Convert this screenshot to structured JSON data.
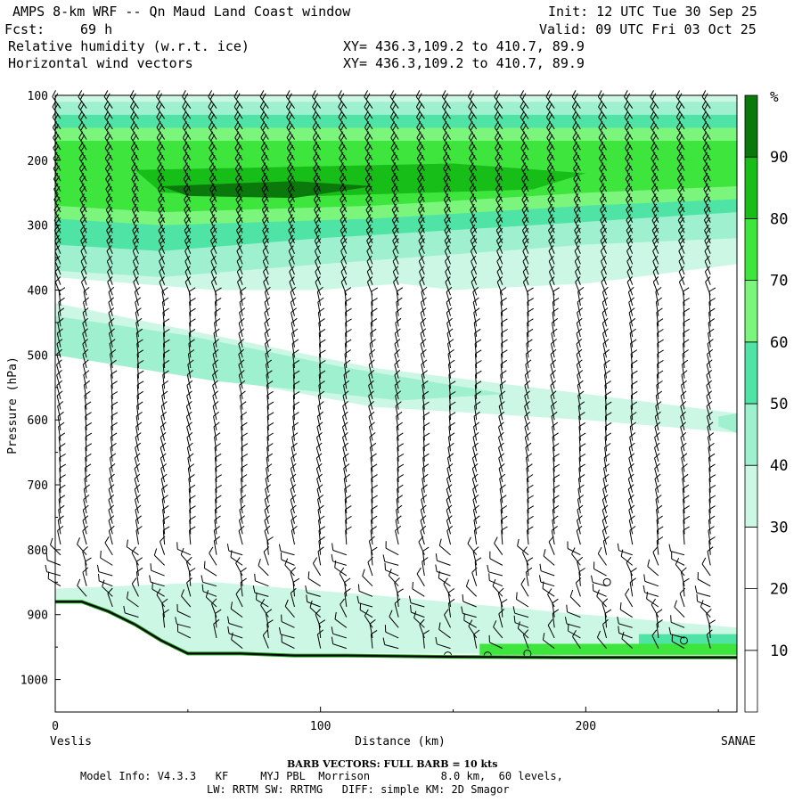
{
  "header": {
    "title": "AMPS 8-km WRF -- Qn Maud Land Coast window",
    "fcst_label": "Fcst:",
    "fcst_value": "69 h",
    "field1": "Relative humidity (w.r.t. ice)",
    "field2": "Horizontal wind vectors",
    "xy1": "XY= 436.3,109.2 to 410.7, 89.9",
    "xy2": "XY= 436.3,109.2 to 410.7, 89.9",
    "init": "Init: 12 UTC Tue 30 Sep 25",
    "valid": "Valid: 09 UTC Fri 03 Oct 25"
  },
  "footer": {
    "barb_note": "BARB VECTORS:  FULL BARB = 10 kts",
    "model_info_1": "Model Info: V4.3.3   KF     MYJ PBL  Morrison           8.0 km,  60 levels,",
    "model_info_2": "LW: RRTM SW: RRTMG   DIFF: simple KM: 2D Smagor"
  },
  "colors": {
    "c30": "#ccf7e5",
    "c40": "#9ef0cf",
    "c50": "#4fe3a6",
    "c60": "#7cf57c",
    "c70": "#3de53d",
    "c80": "#18be18",
    "c90": "#0b780b",
    "terrain": "#000000"
  },
  "chart_data": {
    "type": "cross-section contour with wind barbs",
    "title": "Relative humidity (w.r.t. ice) / Horizontal wind vectors",
    "xlabel": "Distance (km)",
    "ylabel": "Pressure (hPa)",
    "x_start_label": "Veslis",
    "x_end_label": "SANAE",
    "xlim": [
      0,
      257
    ],
    "ylim": [
      1050,
      100
    ],
    "xticks": [
      0,
      100,
      200
    ],
    "yticks": [
      100,
      200,
      300,
      400,
      500,
      600,
      700,
      800,
      900,
      1000
    ],
    "colorbar": {
      "unit": "%",
      "levels": [
        10,
        20,
        30,
        40,
        50,
        60,
        70,
        80,
        90
      ],
      "label_colors": [
        "#ffffff",
        "#ffffff",
        "#ffffff",
        "#ccf7e5",
        "#9ef0cf",
        "#4fe3a6",
        "#7cf57c",
        "#3de53d",
        "#18be18",
        "#0b780b"
      ]
    },
    "terrain_profile": [
      [
        0,
        880
      ],
      [
        10,
        880
      ],
      [
        20,
        895
      ],
      [
        30,
        915
      ],
      [
        40,
        940
      ],
      [
        50,
        960
      ],
      [
        70,
        960
      ],
      [
        90,
        963
      ],
      [
        110,
        963
      ],
      [
        150,
        965
      ],
      [
        200,
        966
      ],
      [
        257,
        966
      ]
    ],
    "rh_regions": [
      {
        "level": 30,
        "points": [
          [
            0,
            100
          ],
          [
            257,
            100
          ],
          [
            257,
            360
          ],
          [
            200,
            390
          ],
          [
            150,
            400
          ],
          [
            130,
            390
          ],
          [
            100,
            400
          ],
          [
            60,
            400
          ],
          [
            0,
            380
          ]
        ]
      },
      {
        "level": 30,
        "points": [
          [
            0,
            420
          ],
          [
            60,
            470
          ],
          [
            120,
            520
          ],
          [
            200,
            560
          ],
          [
            257,
            590
          ],
          [
            257,
            620
          ],
          [
            200,
            600
          ],
          [
            120,
            580
          ],
          [
            40,
            520
          ],
          [
            0,
            500
          ]
        ]
      },
      {
        "level": 30,
        "points": [
          [
            0,
            860
          ],
          [
            60,
            850
          ],
          [
            120,
            870
          ],
          [
            200,
            900
          ],
          [
            257,
            920
          ],
          [
            257,
            960
          ],
          [
            0,
            960
          ]
        ]
      },
      {
        "level": 40,
        "points": [
          [
            0,
            110
          ],
          [
            257,
            110
          ],
          [
            257,
            320
          ],
          [
            200,
            330
          ],
          [
            100,
            360
          ],
          [
            40,
            380
          ],
          [
            0,
            370
          ]
        ]
      },
      {
        "level": 40,
        "points": [
          [
            0,
            440
          ],
          [
            50,
            470
          ],
          [
            110,
            520
          ],
          [
            170,
            560
          ],
          [
            130,
            570
          ],
          [
            60,
            540
          ],
          [
            0,
            500
          ]
        ]
      },
      {
        "level": 40,
        "points": [
          [
            250,
            595
          ],
          [
            257,
            590
          ],
          [
            257,
            620
          ],
          [
            250,
            610
          ]
        ]
      },
      {
        "level": 50,
        "points": [
          [
            0,
            130
          ],
          [
            257,
            130
          ],
          [
            257,
            280
          ],
          [
            180,
            300
          ],
          [
            100,
            320
          ],
          [
            40,
            340
          ],
          [
            0,
            330
          ]
        ]
      },
      {
        "level": 50,
        "points": [
          [
            220,
            930
          ],
          [
            257,
            930
          ],
          [
            257,
            960
          ],
          [
            220,
            960
          ]
        ]
      },
      {
        "level": 60,
        "points": [
          [
            0,
            150
          ],
          [
            257,
            150
          ],
          [
            257,
            260
          ],
          [
            200,
            270
          ],
          [
            120,
            290
          ],
          [
            40,
            300
          ],
          [
            0,
            290
          ]
        ]
      },
      {
        "level": 70,
        "points": [
          [
            0,
            170
          ],
          [
            257,
            170
          ],
          [
            257,
            240
          ],
          [
            200,
            250
          ],
          [
            120,
            270
          ],
          [
            40,
            280
          ],
          [
            0,
            270
          ]
        ]
      },
      {
        "level": 70,
        "points": [
          [
            160,
            945
          ],
          [
            257,
            945
          ],
          [
            257,
            962
          ],
          [
            160,
            962
          ]
        ]
      },
      {
        "level": 80,
        "points": [
          [
            30,
            215
          ],
          [
            150,
            205
          ],
          [
            200,
            220
          ],
          [
            180,
            245
          ],
          [
            100,
            255
          ],
          [
            40,
            250
          ]
        ]
      },
      {
        "level": 90,
        "points": [
          [
            40,
            240
          ],
          [
            90,
            232
          ],
          [
            120,
            240
          ],
          [
            90,
            258
          ],
          [
            50,
            255
          ]
        ]
      }
    ],
    "wind_barbs": {
      "columns_km_step": 9.8,
      "full_barb_kts": 10
    }
  }
}
